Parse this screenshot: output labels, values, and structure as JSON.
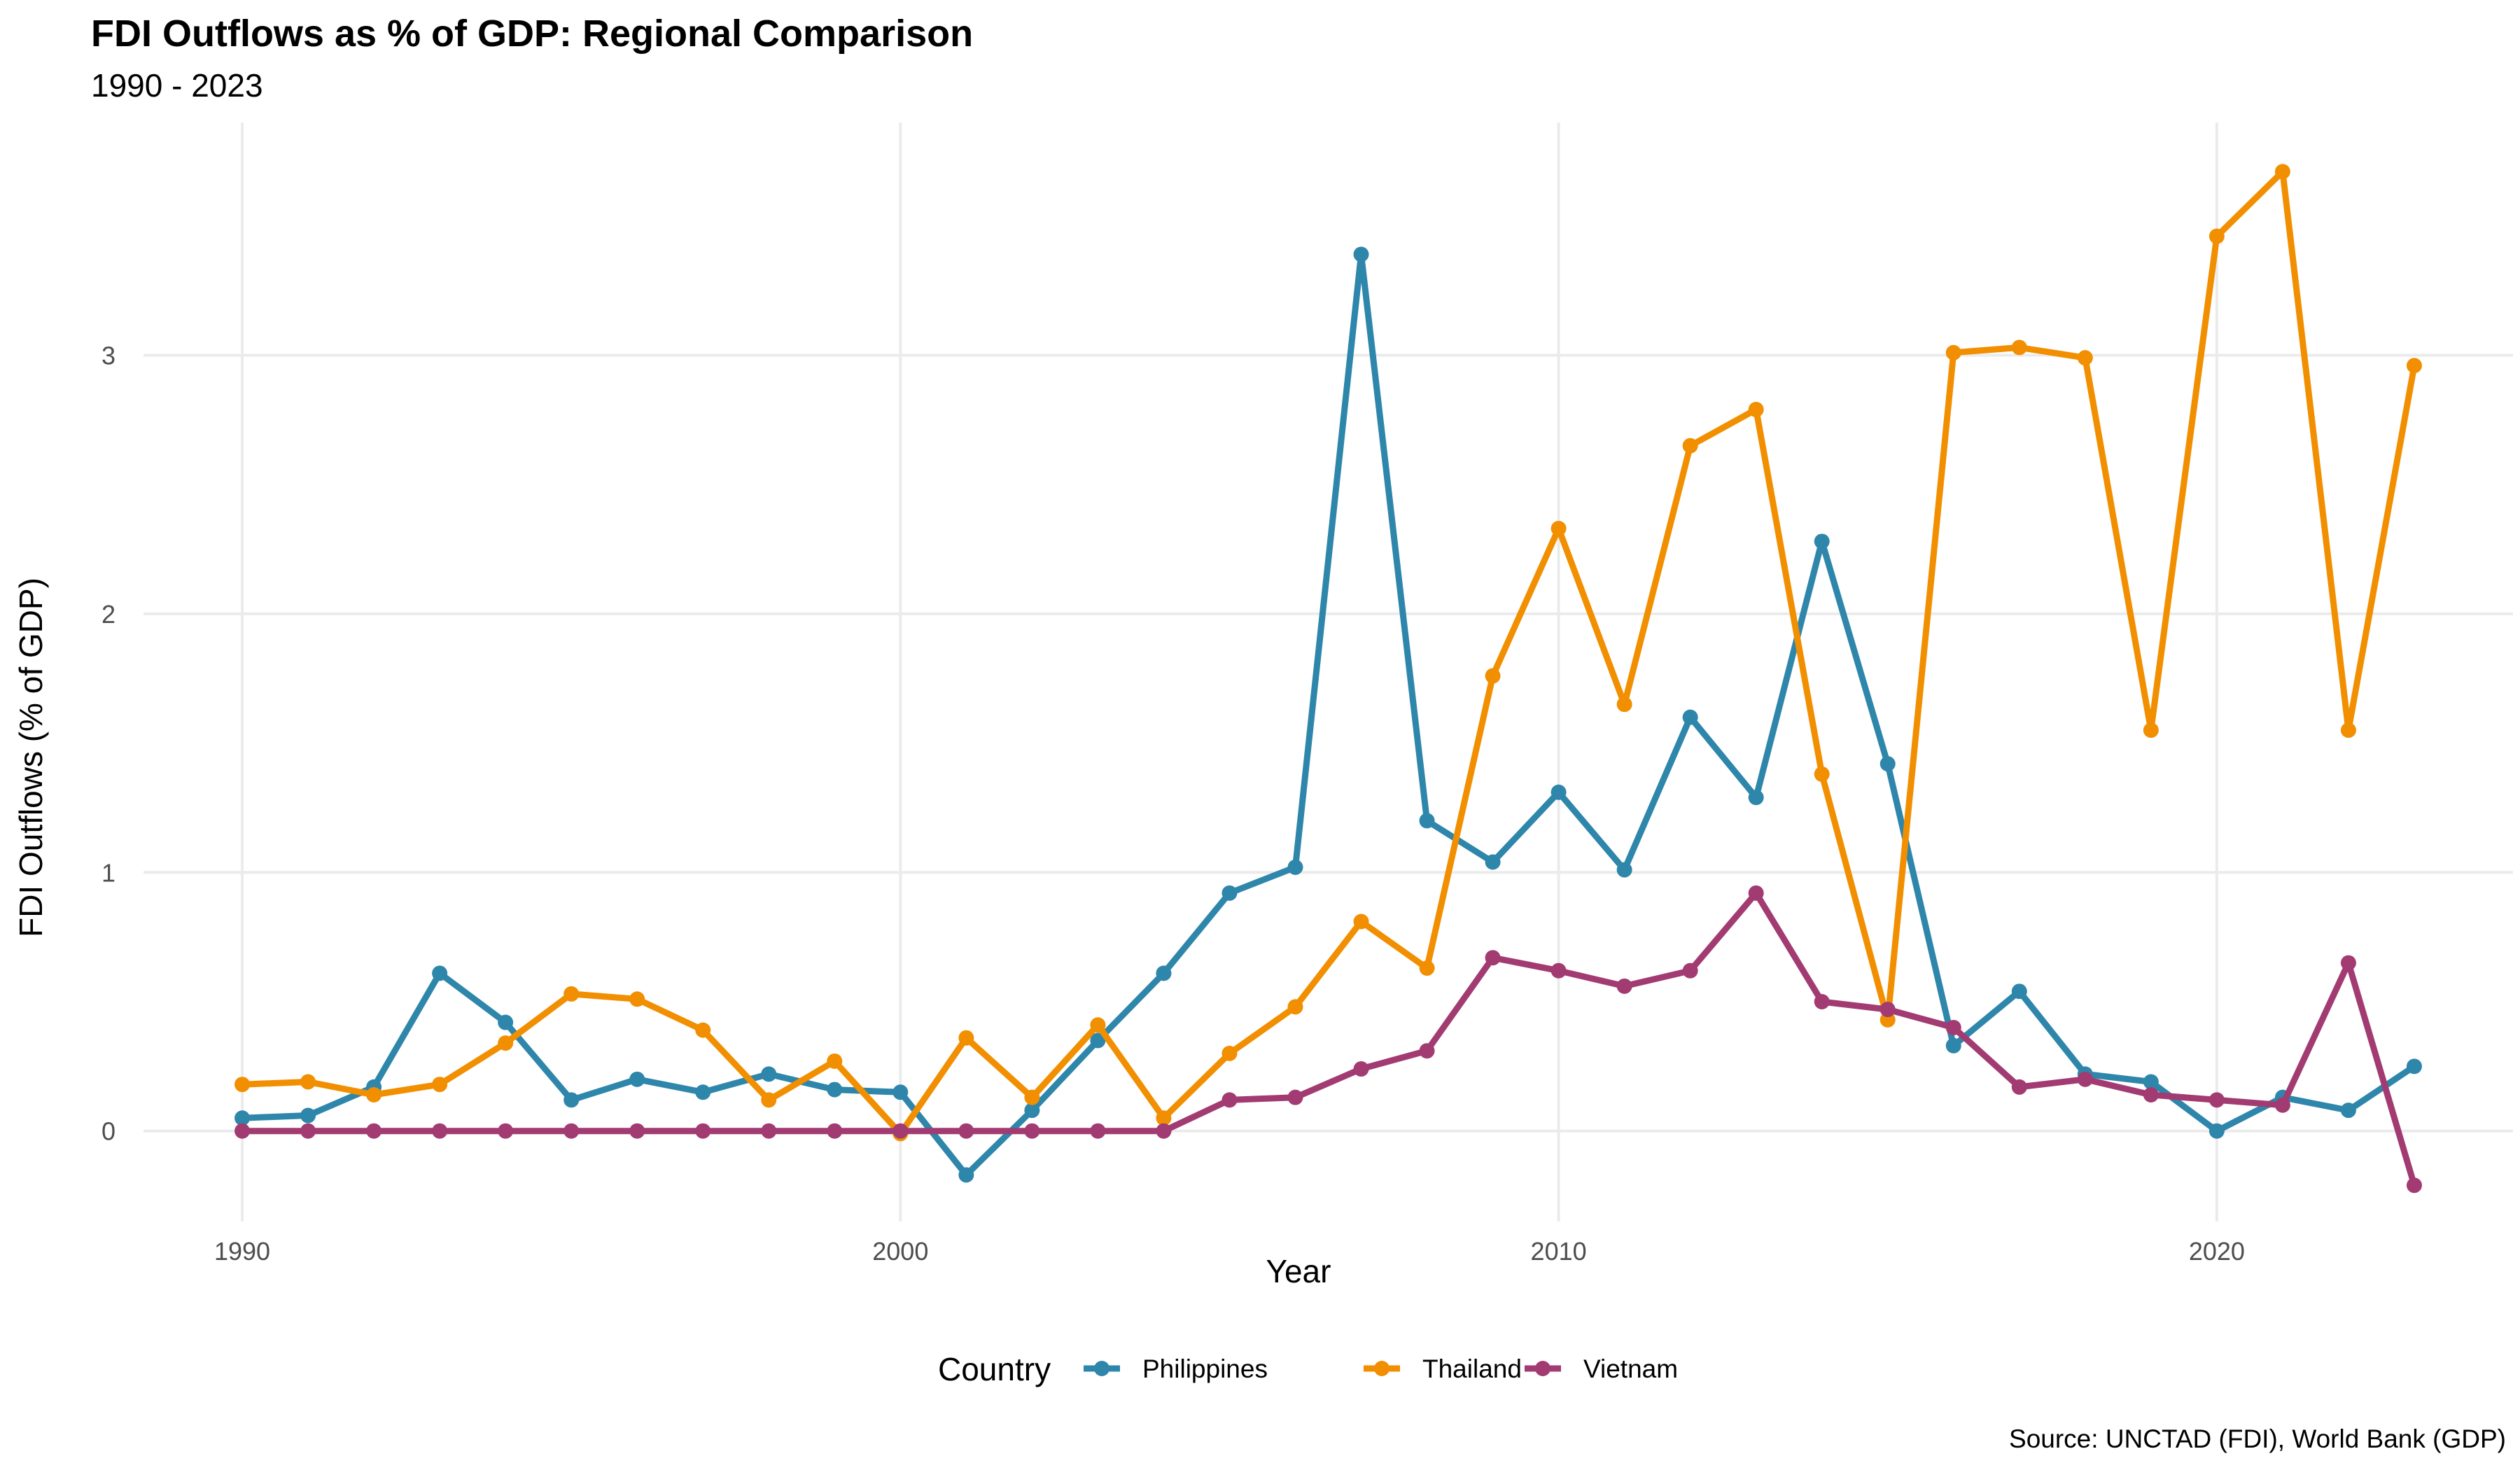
{
  "chart_data": {
    "type": "line",
    "title": "FDI Outflows as % of GDP: Regional Comparison",
    "subtitle": "1990 - 2023",
    "xlabel": "Year",
    "ylabel": "FDI Outflows (% of GDP)",
    "caption": "Source: UNCTAD (FDI), World Bank (GDP)",
    "legend_title": "Country",
    "legend_position": "bottom",
    "grid": true,
    "xlim": [
      1988.5,
      2024.5
    ],
    "ylim": [
      -0.35,
      3.9
    ],
    "x_ticks": [
      1990,
      2000,
      2010,
      2020
    ],
    "y_ticks": [
      0,
      1,
      2,
      3
    ],
    "x": [
      1990,
      1991,
      1992,
      1993,
      1994,
      1995,
      1996,
      1997,
      1998,
      1999,
      2000,
      2001,
      2002,
      2003,
      2004,
      2005,
      2006,
      2007,
      2008,
      2009,
      2010,
      2011,
      2012,
      2013,
      2014,
      2015,
      2016,
      2017,
      2018,
      2019,
      2020,
      2021,
      2022,
      2023
    ],
    "series": [
      {
        "name": "Philippines",
        "color": "#2E86AB",
        "values": [
          0.05,
          0.06,
          0.17,
          0.61,
          0.42,
          0.12,
          0.2,
          0.15,
          0.22,
          0.16,
          0.15,
          -0.17,
          0.08,
          0.35,
          0.61,
          0.92,
          1.02,
          3.39,
          1.2,
          1.04,
          1.31,
          1.01,
          1.6,
          1.29,
          2.28,
          1.42,
          0.33,
          0.54,
          0.22,
          0.19,
          0.0,
          0.13,
          0.08,
          0.25
        ]
      },
      {
        "name": "Thailand",
        "color": "#F18F01",
        "values": [
          0.18,
          0.19,
          0.14,
          0.18,
          0.34,
          0.53,
          0.51,
          0.39,
          0.12,
          0.27,
          -0.01,
          0.36,
          0.13,
          0.41,
          0.05,
          0.3,
          0.48,
          0.81,
          0.63,
          1.76,
          2.33,
          1.65,
          2.65,
          2.79,
          1.38,
          0.43,
          3.01,
          3.03,
          2.99,
          1.55,
          3.46,
          3.71,
          1.55,
          2.96
        ]
      },
      {
        "name": "Vietnam",
        "color": "#A23B72",
        "values": [
          0,
          0,
          0,
          0,
          0,
          0,
          0,
          0,
          0,
          0,
          0,
          0,
          0,
          0,
          0,
          0.12,
          0.13,
          0.24,
          0.31,
          0.67,
          0.62,
          0.56,
          0.62,
          0.92,
          0.5,
          0.47,
          0.4,
          0.17,
          0.2,
          0.14,
          0.12,
          0.1,
          0.65,
          -0.21
        ]
      }
    ]
  }
}
